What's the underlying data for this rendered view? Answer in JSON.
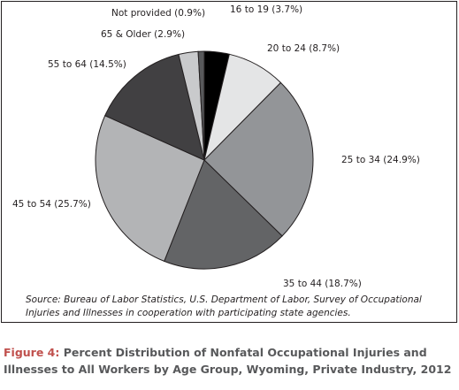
{
  "chart_data": {
    "type": "pie",
    "start": "top, clockwise",
    "slices": [
      {
        "label": "16 to 19 (3.7%)",
        "value": 3.7,
        "color": "#000000"
      },
      {
        "label": "20 to 24 (8.7%)",
        "value": 8.7,
        "color": "#e4e5e6"
      },
      {
        "label": "25 to 34 (24.9%)",
        "value": 24.9,
        "color": "#939598"
      },
      {
        "label": "35 to 44 (18.7%)",
        "value": 18.7,
        "color": "#636466"
      },
      {
        "label": "45 to 54 (25.7%)",
        "value": 25.7,
        "color": "#b3b4b6"
      },
      {
        "label": "55 to 64 (14.5%)",
        "value": 14.5,
        "color": "#414042"
      },
      {
        "label": "65 & Older (2.9%)",
        "value": 2.9,
        "color": "#c9cacc"
      },
      {
        "label": "Not provided (0.9%)",
        "value": 0.9,
        "color": "#58595b"
      }
    ]
  },
  "source_note": "Source: Bureau of Labor Statistics, U.S. Department of Labor, Survey of Occupational Injuries and Illnesses in cooperation with participating state agencies.",
  "caption": {
    "figure_label": "Figure 4:",
    "text": "Percent Distribution of Nonfatal Occupational Injuries and Illnesses to All Workers by Age Group, Wyoming, Private Industry, 2012"
  }
}
